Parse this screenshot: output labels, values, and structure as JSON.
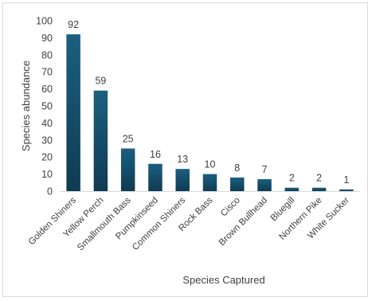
{
  "chart_data": {
    "type": "bar",
    "title": "",
    "xlabel": "Species Captured",
    "ylabel": "Species abundance",
    "categories": [
      "Golden Shiners",
      "Yellow Perch",
      "Smallmouth Bass",
      "Pumpkinseed",
      "Common Shiners",
      "Rock Bass",
      "Cisco",
      "Brown Bullhead",
      "Bluegill",
      "Northern Pike",
      "White Sucker"
    ],
    "values": [
      92,
      59,
      25,
      16,
      13,
      10,
      8,
      7,
      2,
      2,
      1
    ],
    "ylim": [
      0,
      100
    ],
    "yticks": [
      0,
      10,
      20,
      30,
      40,
      50,
      60,
      70,
      80,
      90,
      100
    ],
    "grid": false,
    "legend": "none",
    "data_labels": true,
    "colors": {
      "bar_top": "#1c5f80",
      "bar_bottom": "#0f3b52",
      "axis": "#d9d9d9",
      "text": "#404040"
    }
  }
}
